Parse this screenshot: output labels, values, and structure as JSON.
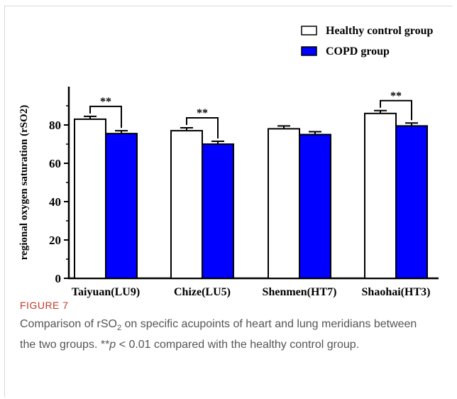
{
  "figure": {
    "label": "FIGURE 7",
    "caption_prefix": "Comparison of rSO",
    "caption_sub": "2",
    "caption_mid": " on specific acupoints of heart and lung meridians between the two groups. **",
    "caption_p": "p",
    "caption_suffix": " < 0.01 compared with the healthy control group."
  },
  "colors": {
    "healthy_fill": "#ffffff",
    "copd_fill": "#0000ff",
    "stroke": "#000000"
  },
  "chart_data": {
    "type": "bar",
    "title": "",
    "xlabel": "",
    "ylabel": "regional oxygen saturation (rSO2)",
    "ylim": [
      0,
      100
    ],
    "yticks": [
      0,
      20,
      40,
      60,
      80
    ],
    "categories": [
      "Taiyuan(LU9)",
      "Chize(LU5)",
      "Shenmen(HT7)",
      "Shaohai(HT3)"
    ],
    "legend_position": "top-right",
    "series": [
      {
        "name": "Healthy control group",
        "values": [
          83,
          77,
          78,
          86
        ],
        "errors": [
          1.5,
          1.5,
          1.5,
          1.5
        ]
      },
      {
        "name": "COPD group",
        "values": [
          75.5,
          70,
          75,
          79.5
        ],
        "errors": [
          1.5,
          1.5,
          1.5,
          1.5
        ]
      }
    ],
    "significance": [
      {
        "category": "Taiyuan(LU9)",
        "label": "**"
      },
      {
        "category": "Chize(LU5)",
        "label": "**"
      },
      {
        "category": "Shaohai(HT3)",
        "label": "**"
      }
    ]
  }
}
